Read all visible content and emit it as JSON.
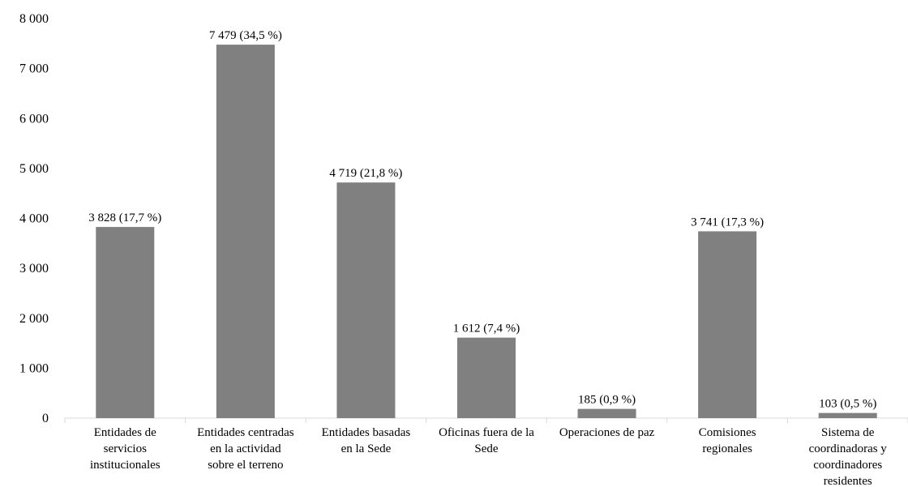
{
  "chart_data": {
    "type": "bar",
    "categories": [
      [
        "Entidades de",
        "servicios",
        "institucionales"
      ],
      [
        "Entidades centradas",
        "en la actividad",
        "sobre el terreno"
      ],
      [
        "Entidades basadas",
        "en la Sede"
      ],
      [
        "Oficinas fuera de la",
        "Sede"
      ],
      [
        "Operaciones de paz"
      ],
      [
        "Comisiones",
        "regionales"
      ],
      [
        "Sistema de",
        "coordinadoras y",
        "coordinadores",
        "residentes"
      ]
    ],
    "values": [
      3828,
      7479,
      4719,
      1612,
      185,
      3741,
      103
    ],
    "data_labels": [
      "3 828 (17,7 %)",
      "7 479 (34,5 %)",
      "4 719 (21,8 %)",
      "1 612 (7,4 %)",
      "185 (0,9 %)",
      "3 741 (17,3 %)",
      "103 (0,5 %)"
    ],
    "y_ticks": [
      0,
      1000,
      2000,
      3000,
      4000,
      5000,
      6000,
      7000,
      8000
    ],
    "y_tick_labels": [
      "0",
      "1 000",
      "2 000",
      "3 000",
      "4 000",
      "5 000",
      "6 000",
      "7 000",
      "8 000"
    ],
    "ylim": [
      0,
      8000
    ],
    "grid": false,
    "legend": "none",
    "bar_color": "#808080",
    "axis_color": "#d9d9d9"
  }
}
